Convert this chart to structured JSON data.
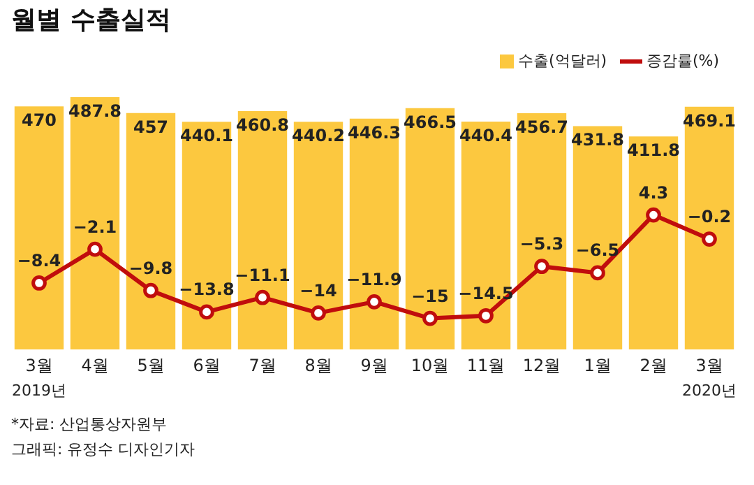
{
  "chart_data": {
    "type": "bar",
    "title": "월별 수출실적",
    "categories": [
      "3월",
      "4월",
      "5월",
      "6월",
      "7월",
      "8월",
      "9월",
      "10월",
      "11월",
      "12월",
      "1월",
      "2월",
      "3월"
    ],
    "series": [
      {
        "name": "수출(억달러)",
        "color": "#fcc83f",
        "values": [
          470,
          487.8,
          457,
          440.1,
          460.8,
          440.2,
          446.3,
          466.5,
          440.4,
          456.7,
          431.8,
          411.8,
          469.1
        ]
      },
      {
        "name": "증감률(%)",
        "type": "line",
        "axis": "y2",
        "color": "#c00d0d",
        "values": [
          -8.4,
          -2.1,
          -9.8,
          -13.8,
          -11.1,
          -14,
          -11.9,
          -15,
          -14.5,
          -5.3,
          -6.5,
          4.3,
          -0.2
        ]
      }
    ],
    "annotations": [
      "2019년",
      "2020년",
      "*자료: 산업통상자원부",
      "그래픽: 유정수 디자인기자"
    ],
    "data_labels": true,
    "tick_labels": "x",
    "legend": "top right",
    "marker": "circle",
    "line_style": "solid"
  }
}
